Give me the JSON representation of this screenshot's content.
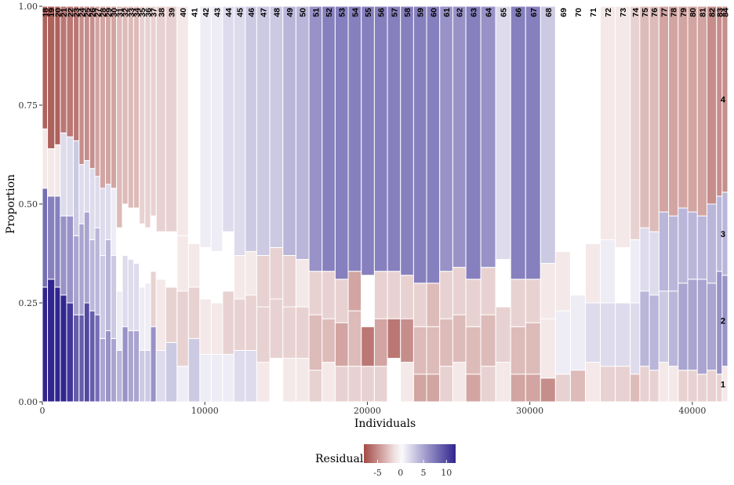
{
  "chart_data": {
    "type": "mosaic",
    "xlabel": "Individuals",
    "ylabel": "Proportion",
    "xlim": [
      0,
      42179
    ],
    "ylim": [
      0,
      1
    ],
    "x_ticks": [
      0,
      10000,
      20000,
      30000,
      40000
    ],
    "x_tick_labels": [
      "0",
      "10000",
      "20000",
      "30000",
      "40000"
    ],
    "y_ticks": [
      0,
      0.25,
      0.5,
      0.75,
      1
    ],
    "y_tick_labels": [
      "0.00",
      "0.25",
      "0.50",
      "0.75",
      "1.00"
    ],
    "category_labels": [
      "1",
      "2",
      "3",
      "4"
    ],
    "columns": [
      {
        "label": "18",
        "count": 295,
        "cum": [
          0.29,
          0.54,
          0.69
        ],
        "res": [
          13,
          8,
          -1,
          -7
        ]
      },
      {
        "label": "19",
        "count": 417,
        "cum": [
          0.31,
          0.52,
          0.64
        ],
        "res": [
          13,
          7,
          -1,
          -7
        ]
      },
      {
        "label": "20",
        "count": 318,
        "cum": [
          0.29,
          0.52,
          0.65
        ],
        "res": [
          12,
          7,
          -1,
          -7
        ]
      },
      {
        "label": "21",
        "count": 361,
        "cum": [
          0.27,
          0.47,
          0.68
        ],
        "res": [
          12,
          6,
          2,
          -6
        ]
      },
      {
        "label": "22",
        "count": 385,
        "cum": [
          0.25,
          0.47,
          0.67
        ],
        "res": [
          11,
          6,
          2,
          -6
        ]
      },
      {
        "label": "23",
        "count": 326,
        "cum": [
          0.22,
          0.42,
          0.66
        ],
        "res": [
          9,
          5,
          3,
          -6
        ]
      },
      {
        "label": "24",
        "count": 291,
        "cum": [
          0.22,
          0.45,
          0.6
        ],
        "res": [
          9,
          5,
          2,
          -5
        ]
      },
      {
        "label": "25",
        "count": 315,
        "cum": [
          0.25,
          0.48,
          0.61
        ],
        "res": [
          10,
          5,
          2,
          -5
        ]
      },
      {
        "label": "26",
        "count": 300,
        "cum": [
          0.23,
          0.41,
          0.59
        ],
        "res": [
          9,
          4,
          2,
          -5
        ]
      },
      {
        "label": "27",
        "count": 287,
        "cum": [
          0.22,
          0.44,
          0.57
        ],
        "res": [
          8,
          4,
          2,
          -4
        ]
      },
      {
        "label": "28",
        "count": 316,
        "cum": [
          0.16,
          0.37,
          0.54
        ],
        "res": [
          5,
          3,
          2,
          -4
        ]
      },
      {
        "label": "29",
        "count": 315,
        "cum": [
          0.18,
          0.41,
          0.55
        ],
        "res": [
          6,
          4,
          2,
          -4
        ]
      },
      {
        "label": "30",
        "count": 319,
        "cum": [
          0.16,
          0.37,
          0.54
        ],
        "res": [
          5,
          3,
          1,
          -4
        ]
      },
      {
        "label": "31",
        "count": 333,
        "cum": [
          0.13,
          0.28,
          0.44
        ],
        "res": [
          4,
          1,
          0,
          -3
        ]
      },
      {
        "label": "32",
        "count": 323,
        "cum": [
          0.19,
          0.37,
          0.5
        ],
        "res": [
          6,
          2,
          0,
          -3
        ]
      },
      {
        "label": "33",
        "count": 323,
        "cum": [
          0.18,
          0.36,
          0.49
        ],
        "res": [
          5,
          2,
          0,
          -3
        ]
      },
      {
        "label": "34",
        "count": 323,
        "cum": [
          0.18,
          0.35,
          0.49
        ],
        "res": [
          5,
          2,
          0,
          -3
        ]
      },
      {
        "label": "35",
        "count": 323,
        "cum": [
          0.13,
          0.29,
          0.45
        ],
        "res": [
          3,
          1,
          0,
          -2
        ]
      },
      {
        "label": "36",
        "count": 323,
        "cum": [
          0.13,
          0.3,
          0.44
        ],
        "res": [
          3,
          1,
          0,
          -2
        ]
      },
      {
        "label": "37",
        "count": 323,
        "cum": [
          0.19,
          0.33,
          0.47
        ],
        "res": [
          6,
          -2,
          0,
          -2
        ]
      },
      {
        "label": "38",
        "count": 543,
        "cum": [
          0.13,
          0.31,
          0.43
        ],
        "res": [
          2,
          -1,
          0,
          -2
        ]
      },
      {
        "label": "39",
        "count": 651,
        "cum": [
          0.15,
          0.29,
          0.43
        ],
        "res": [
          3,
          -2,
          0,
          -2
        ]
      },
      {
        "label": "40",
        "count": 651,
        "cum": [
          0.09,
          0.28,
          0.42
        ],
        "res": [
          1,
          -2,
          -1,
          -1
        ]
      },
      {
        "label": "41",
        "count": 652,
        "cum": [
          0.16,
          0.29,
          0.4
        ],
        "res": [
          3,
          -2,
          -1,
          0
        ]
      },
      {
        "label": "42",
        "count": 651,
        "cum": [
          0.12,
          0.26,
          0.39
        ],
        "res": [
          1,
          -1,
          0,
          1
        ]
      },
      {
        "label": "43",
        "count": 651,
        "cum": [
          0.12,
          0.25,
          0.38
        ],
        "res": [
          1,
          -1,
          0,
          1
        ]
      },
      {
        "label": "44",
        "count": 651,
        "cum": [
          0.12,
          0.28,
          0.43
        ],
        "res": [
          1,
          -2,
          0,
          2
        ]
      },
      {
        "label": "45",
        "count": 651,
        "cum": [
          0.13,
          0.26,
          0.37
        ],
        "res": [
          2,
          -2,
          -1,
          2
        ]
      },
      {
        "label": "46",
        "count": 651,
        "cum": [
          0.13,
          0.27,
          0.38
        ],
        "res": [
          2,
          -2,
          -1,
          3
        ]
      },
      {
        "label": "47",
        "count": 748,
        "cum": [
          0.1,
          0.24,
          0.37
        ],
        "res": [
          -1,
          -2,
          -2,
          3
        ]
      },
      {
        "label": "48",
        "count": 748,
        "cum": [
          0.11,
          0.26,
          0.39
        ],
        "res": [
          0,
          -2,
          -2,
          3
        ]
      },
      {
        "label": "49",
        "count": 748,
        "cum": [
          0.11,
          0.24,
          0.37
        ],
        "res": [
          -1,
          -2,
          -2,
          4
        ]
      },
      {
        "label": "50",
        "count": 747,
        "cum": [
          0.11,
          0.24,
          0.36
        ],
        "res": [
          -1,
          -2,
          -1,
          4
        ]
      },
      {
        "label": "51",
        "count": 748,
        "cum": [
          0.08,
          0.22,
          0.33
        ],
        "res": [
          -2,
          -3,
          -2,
          6
        ]
      },
      {
        "label": "52",
        "count": 748,
        "cum": [
          0.1,
          0.21,
          0.33
        ],
        "res": [
          -1,
          -3,
          -2,
          7
        ]
      },
      {
        "label": "53",
        "count": 748,
        "cum": [
          0.09,
          0.2,
          0.31
        ],
        "res": [
          -2,
          -4,
          -2,
          7
        ]
      },
      {
        "label": "54",
        "count": 748,
        "cum": [
          0.09,
          0.23,
          0.33
        ],
        "res": [
          -2,
          -3,
          -4,
          7
        ]
      },
      {
        "label": "55",
        "count": 748,
        "cum": [
          0.09,
          0.19,
          0.32
        ],
        "res": [
          -2,
          -6,
          0,
          7
        ]
      },
      {
        "label": "56",
        "count": 748,
        "cum": [
          0.09,
          0.21,
          0.33
        ],
        "res": [
          -2,
          -4,
          -2,
          7
        ]
      },
      {
        "label": "57",
        "count": 748,
        "cum": [
          0.11,
          0.21,
          0.33
        ],
        "res": [
          0,
          -6,
          -2,
          7
        ]
      },
      {
        "label": "58",
        "count": 748,
        "cum": [
          0.1,
          0.21,
          0.32
        ],
        "res": [
          -1,
          -5,
          -2,
          7
        ]
      },
      {
        "label": "59",
        "count": 747,
        "cum": [
          0.07,
          0.19,
          0.3
        ],
        "res": [
          -4,
          -3,
          -2,
          7
        ]
      },
      {
        "label": "60",
        "count": 748,
        "cum": [
          0.07,
          0.19,
          0.3
        ],
        "res": [
          -4,
          -3,
          -3,
          7
        ]
      },
      {
        "label": "61",
        "count": 748,
        "cum": [
          0.09,
          0.21,
          0.33
        ],
        "res": [
          -2,
          -3,
          -2,
          6
        ]
      },
      {
        "label": "62",
        "count": 748,
        "cum": [
          0.1,
          0.22,
          0.34
        ],
        "res": [
          -1,
          -3,
          -2,
          6
        ]
      },
      {
        "label": "63",
        "count": 854,
        "cum": [
          0.07,
          0.19,
          0.31
        ],
        "res": [
          -4,
          -3,
          -2,
          7
        ]
      },
      {
        "label": "64",
        "count": 855,
        "cum": [
          0.09,
          0.22,
          0.34
        ],
        "res": [
          -2,
          -3,
          -2,
          6
        ]
      },
      {
        "label": "65",
        "count": 855,
        "cum": [
          0.1,
          0.24,
          0.36
        ],
        "res": [
          -1,
          -2,
          0,
          2
        ]
      },
      {
        "label": "66",
        "count": 855,
        "cum": [
          0.07,
          0.19,
          0.31
        ],
        "res": [
          -4,
          -3,
          -2,
          7
        ]
      },
      {
        "label": "67",
        "count": 855,
        "cum": [
          0.07,
          0.2,
          0.31
        ],
        "res": [
          -4,
          -3,
          -2,
          7
        ]
      },
      {
        "label": "68",
        "count": 855,
        "cum": [
          0.06,
          0.21,
          0.35
        ],
        "res": [
          -5,
          -1,
          -1,
          3
        ]
      },
      {
        "label": "69",
        "count": 855,
        "cum": [
          0.07,
          0.23,
          0.38
        ],
        "res": [
          -2,
          1,
          -1,
          0
        ]
      },
      {
        "label": "70",
        "count": 855,
        "cum": [
          0.08,
          0.27,
          0.41
        ],
        "res": [
          -3,
          1,
          0,
          0
        ]
      },
      {
        "label": "71",
        "count": 855,
        "cum": [
          0.1,
          0.25,
          0.4
        ],
        "res": [
          -1,
          2,
          -1,
          0
        ]
      },
      {
        "label": "72",
        "count": 855,
        "cum": [
          0.09,
          0.25,
          0.41
        ],
        "res": [
          -2,
          2,
          1,
          -1
        ]
      },
      {
        "label": "73",
        "count": 855,
        "cum": [
          0.09,
          0.25,
          0.39
        ],
        "res": [
          -2,
          2,
          0,
          -1
        ]
      },
      {
        "label": "74",
        "count": 549,
        "cum": [
          0.07,
          0.25,
          0.41
        ],
        "res": [
          -3,
          2,
          1,
          -2
        ]
      },
      {
        "label": "75",
        "count": 548,
        "cum": [
          0.09,
          0.28,
          0.44
        ],
        "res": [
          -2,
          4,
          2,
          -3
        ]
      },
      {
        "label": "76",
        "count": 549,
        "cum": [
          0.08,
          0.27,
          0.43
        ],
        "res": [
          -2,
          4,
          2,
          -3
        ]
      },
      {
        "label": "77",
        "count": 549,
        "cum": [
          0.1,
          0.28,
          0.48
        ],
        "res": [
          -1,
          3,
          4,
          -4
        ]
      },
      {
        "label": "78",
        "count": 549,
        "cum": [
          0.09,
          0.28,
          0.47
        ],
        "res": [
          -1,
          4,
          4,
          -4
        ]
      },
      {
        "label": "79",
        "count": 549,
        "cum": [
          0.08,
          0.3,
          0.49
        ],
        "res": [
          -2,
          5,
          4,
          -4
        ]
      },
      {
        "label": "80",
        "count": 549,
        "cum": [
          0.08,
          0.31,
          0.48
        ],
        "res": [
          -2,
          5,
          4,
          -4
        ]
      },
      {
        "label": "81",
        "count": 549,
        "cum": [
          0.07,
          0.31,
          0.47
        ],
        "res": [
          -2,
          5,
          4,
          -4
        ]
      },
      {
        "label": "82",
        "count": 549,
        "cum": [
          0.08,
          0.3,
          0.5
        ],
        "res": [
          -2,
          5,
          4,
          -5
        ]
      },
      {
        "label": "83",
        "count": 320,
        "cum": [
          0.07,
          0.33,
          0.52
        ],
        "res": [
          -2,
          6,
          4,
          -5
        ]
      },
      {
        "label": "84",
        "count": 320,
        "cum": [
          0.09,
          0.32,
          0.53
        ],
        "res": [
          -1,
          6,
          4,
          -5
        ]
      }
    ],
    "legend": {
      "title": "Residuals",
      "range": [
        -8,
        12
      ],
      "ticks": [
        -5,
        0,
        5,
        10
      ],
      "tick_labels": [
        "-5",
        "0",
        "5",
        "10"
      ],
      "colors": {
        "low": "#a44a45",
        "mid": "#ffffff",
        "high": "#31258f"
      }
    }
  }
}
